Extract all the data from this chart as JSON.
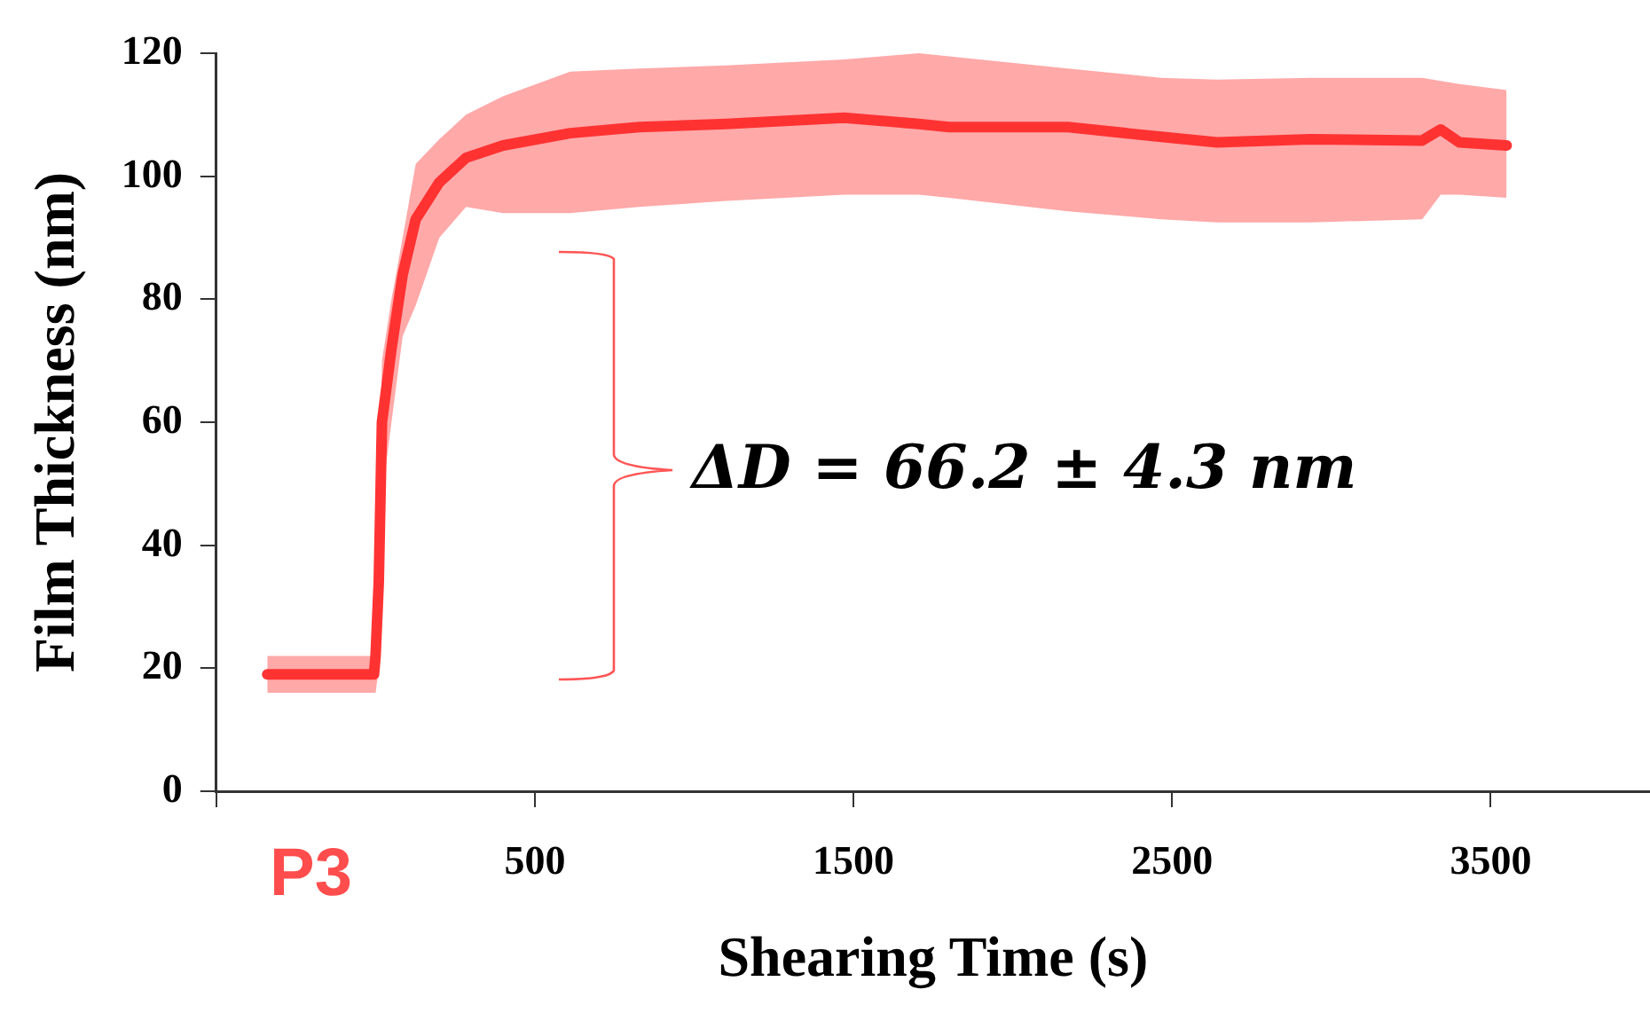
{
  "chart_data": {
    "type": "line",
    "ylabel": "Film Thickness (nm)",
    "xlabel": "Shearing Time (s)",
    "annotations": [
      "ΔD = 66.2 ± 4.3 nm",
      "P3"
    ],
    "x": [
      -340,
      -5,
      0,
      10,
      20,
      50,
      85,
      126,
      200,
      284,
      400,
      611,
      828,
      1100,
      1471,
      1705,
      1800,
      2173,
      2466,
      2641,
      2934,
      3285,
      3343,
      3402,
      3550
    ],
    "series": [
      {
        "color": "#ff3333",
        "values": [
          19,
          19,
          22,
          34,
          60,
          72,
          84,
          93,
          99,
          103,
          105,
          107,
          108,
          108.5,
          109.5,
          108.5,
          108,
          108,
          106.4,
          105.5,
          106,
          105.8,
          107.6,
          105.5,
          105
        ],
        "lower": [
          16,
          16,
          16,
          20,
          48,
          60,
          74,
          79,
          90,
          95,
          94,
          94,
          95,
          96,
          97,
          97,
          96.5,
          94.3,
          93,
          92.5,
          92.5,
          93,
          97,
          97,
          96.5
        ],
        "upper": [
          22,
          22,
          28,
          45,
          70,
          80,
          90,
          102,
          106,
          110,
          113,
          117,
          117.5,
          118,
          119,
          120,
          119.5,
          117.5,
          116,
          115.7,
          116,
          116,
          115.5,
          115,
          114
        ]
      }
    ],
    "xlim": [
      -500,
      4000
    ],
    "xticks": [
      {
        "value": -500,
        "label": null
      },
      500,
      1500,
      2500,
      3500
    ],
    "ylim": [
      0,
      120
    ],
    "yticks": [
      0,
      20,
      40,
      60,
      80,
      100,
      120
    ]
  }
}
